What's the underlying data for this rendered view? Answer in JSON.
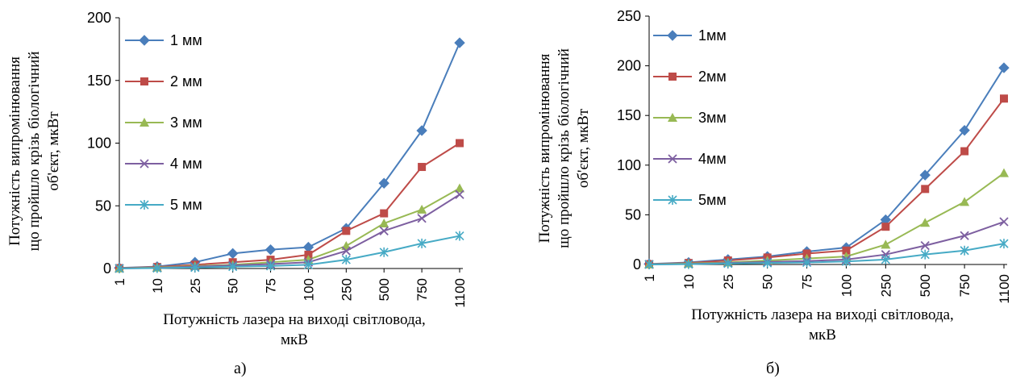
{
  "captions": [
    "а)",
    "б)"
  ],
  "chart_data": [
    {
      "type": "line",
      "categories": [
        "1",
        "10",
        "25",
        "50",
        "75",
        "100",
        "250",
        "500",
        "750",
        "1100"
      ],
      "ylim": [
        0,
        200
      ],
      "yticks": [
        0,
        50,
        100,
        150,
        200
      ],
      "ylabel_lines": [
        "Потужність випромінювання",
        "що пройшло крізь біологічний",
        "об'єкт, мкВт"
      ],
      "xlabel_lines": [
        "Потужність лазера на виході світловода,",
        "мкВ"
      ],
      "legend_position": "top-left",
      "grid": false,
      "series": [
        {
          "name": "1 мм",
          "color": "#4a7ebb",
          "marker": "diamond",
          "values": [
            0.5,
            1.5,
            5,
            12,
            15,
            17,
            32,
            68,
            110,
            180
          ]
        },
        {
          "name": "2 мм",
          "color": "#be4b48",
          "marker": "square",
          "values": [
            0.3,
            1.2,
            3,
            5,
            7,
            11,
            30,
            44,
            81,
            100
          ]
        },
        {
          "name": "3 мм",
          "color": "#98b954",
          "marker": "triangle",
          "values": [
            0.2,
            0.8,
            2,
            3,
            5,
            7,
            18,
            36,
            47,
            64
          ]
        },
        {
          "name": "4 мм",
          "color": "#7d5fa0",
          "marker": "x",
          "values": [
            0.1,
            0.5,
            1.5,
            2.5,
            3.5,
            5,
            14,
            30,
            40,
            59
          ]
        },
        {
          "name": "5 мм",
          "color": "#46aac5",
          "marker": "star",
          "values": [
            0.05,
            0.3,
            0.8,
            1.5,
            2,
            3,
            7,
            13,
            20,
            26
          ]
        }
      ]
    },
    {
      "type": "line",
      "categories": [
        "1",
        "10",
        "25",
        "50",
        "75",
        "100",
        "250",
        "500",
        "750",
        "1100"
      ],
      "ylim": [
        0,
        250
      ],
      "yticks": [
        0,
        50,
        100,
        150,
        200,
        250
      ],
      "ylabel_lines": [
        "Потужність випромінювання",
        "що пройшло крізь біологічний",
        "об'єкт, мкВт"
      ],
      "xlabel_lines": [
        "Потужність лазера на виході світловода,",
        "мкВ"
      ],
      "legend_position": "top-left",
      "grid": false,
      "series": [
        {
          "name": "1мм",
          "color": "#4a7ebb",
          "marker": "diamond",
          "values": [
            0.5,
            2,
            5,
            8,
            13,
            17,
            45,
            90,
            135,
            198
          ]
        },
        {
          "name": "2мм",
          "color": "#be4b48",
          "marker": "square",
          "values": [
            0.3,
            1.5,
            4,
            7,
            11,
            14,
            38,
            76,
            114,
            167
          ]
        },
        {
          "name": "3мм",
          "color": "#98b954",
          "marker": "triangle",
          "values": [
            0.2,
            1,
            2,
            4,
            6,
            8,
            20,
            42,
            63,
            92
          ]
        },
        {
          "name": "4мм",
          "color": "#7d5fa0",
          "marker": "x",
          "values": [
            0.1,
            0.5,
            1.5,
            2.5,
            3.5,
            5,
            10,
            19,
            29,
            43
          ]
        },
        {
          "name": "5мм",
          "color": "#46aac5",
          "marker": "star",
          "values": [
            0.05,
            0.3,
            1,
            1.5,
            2,
            3,
            5,
            10,
            14,
            21
          ]
        }
      ]
    }
  ]
}
